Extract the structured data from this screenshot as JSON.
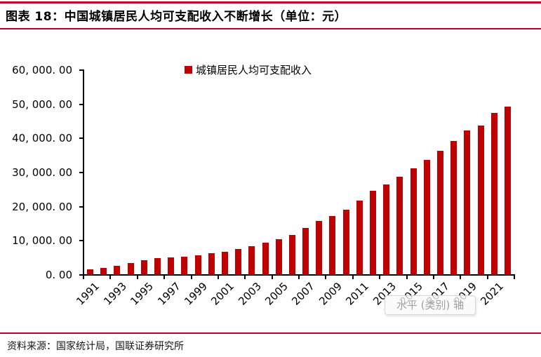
{
  "header": {
    "title": "图表 18：中国城镇居民人均可支配收入不断增长（单位：元）"
  },
  "legend": {
    "label": "城镇居民人均可支配收入"
  },
  "tooltip": {
    "text": "水平 (类别) 轴"
  },
  "footer": {
    "source": "资料来源：国家统计局，国联证券研究所"
  },
  "chart_data": {
    "type": "bar",
    "title": "图表 18：中国城镇居民人均可支配收入不断增长（单位：元）",
    "series_name": "城镇居民人均可支配收入",
    "unit": "元",
    "categories": [
      1991,
      1992,
      1993,
      1994,
      1995,
      1996,
      1997,
      1998,
      1999,
      2000,
      2001,
      2002,
      2003,
      2004,
      2005,
      2006,
      2007,
      2008,
      2009,
      2010,
      2011,
      2012,
      2013,
      2014,
      2015,
      2016,
      2017,
      2018,
      2019,
      2020,
      2021,
      2022
    ],
    "values": [
      1700,
      2027,
      2577,
      3496,
      4283,
      4839,
      5160,
      5425,
      5854,
      6280,
      6860,
      7703,
      8472,
      9422,
      10493,
      11760,
      13786,
      15781,
      17175,
      19109,
      21810,
      24565,
      26467,
      28844,
      31195,
      33616,
      36396,
      39251,
      42359,
      43834,
      47412,
      49283
    ],
    "ylim": [
      0,
      60000
    ],
    "ytick_interval": 10000,
    "ytick_labels": [
      "0. 00",
      "10, 000. 00",
      "20, 000. 00",
      "30, 000. 00",
      "40, 000. 00",
      "50, 000. 00",
      "60, 000. 00"
    ],
    "xtick_labels": [
      "1991",
      "1993",
      "1995",
      "1997",
      "1999",
      "2001",
      "2003",
      "2005",
      "2007",
      "2009",
      "2011",
      "2013",
      "2015",
      "2017",
      "2019",
      "2021"
    ],
    "bar_color": "#c00000",
    "rule_color": "#be0028",
    "grid": false,
    "legend_position": "top-center"
  }
}
